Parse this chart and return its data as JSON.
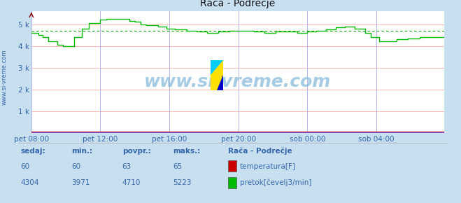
{
  "title": "Rača - Podrečje",
  "bg_color": "#c8dff0",
  "plot_bg_color": "#ffffff",
  "grid_color_h": "#ffaaaa",
  "grid_color_v": "#aaaadd",
  "yticks": [
    0,
    1000,
    2000,
    3000,
    4000,
    5000
  ],
  "ytick_labels": [
    "",
    "1 k",
    "2 k",
    "3 k",
    "4 k",
    "5 k"
  ],
  "ylim": [
    0,
    5600
  ],
  "xtick_labels": [
    "pet 08:00",
    "pet 12:00",
    "pet 16:00",
    "pet 20:00",
    "sob 00:00",
    "sob 04:00"
  ],
  "xtick_positions": [
    0,
    48,
    96,
    144,
    192,
    240
  ],
  "xlim": [
    0,
    287
  ],
  "flow_avg": 4710,
  "flow_color": "#00bb00",
  "flow_avg_color": "#009900",
  "temp_color": "#cc0000",
  "watermark": "www.si-vreme.com",
  "ylabel_left": "www.si-vreme.com",
  "footer_labels": [
    "sedaj:",
    "min.:",
    "povpr.:",
    "maks.:"
  ],
  "footer_row1": [
    "60",
    "60",
    "63",
    "65"
  ],
  "footer_row2": [
    "4304",
    "3971",
    "4710",
    "5223"
  ],
  "legend_title": "Rača - Podrečje",
  "legend_items": [
    "temperatura[F]",
    "pretok[čevelj3/min]"
  ],
  "legend_colors": [
    "#cc0000",
    "#00bb00"
  ],
  "axis_color": "#4444ff",
  "text_color": "#3366aa"
}
